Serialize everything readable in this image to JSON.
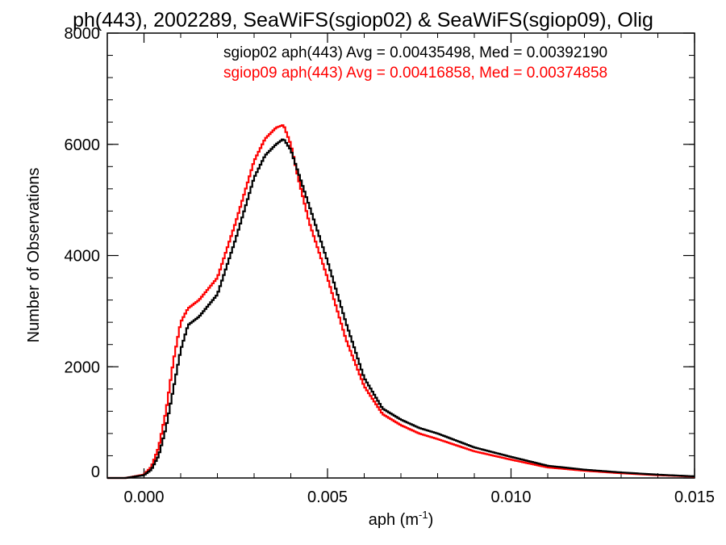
{
  "chart_data": {
    "type": "line",
    "title": "ph(443), 2002289, SeaWiFS(sgiop02) & SeaWiFS(sgiop09), Olig",
    "xlabel_main": "aph (m",
    "xlabel_exp": "-1",
    "xlabel_close": ")",
    "ylabel": "Number of Observations",
    "xlim": [
      -0.001,
      0.015
    ],
    "ylim": [
      0,
      8000
    ],
    "xticks": [
      0.0,
      0.005,
      0.01,
      0.015
    ],
    "xtick_labels": [
      "0.000",
      "0.005",
      "0.010",
      "0.015"
    ],
    "yticks": [
      0,
      2000,
      4000,
      6000,
      8000
    ],
    "ytick_labels": [
      "0",
      "2000",
      "4000",
      "6000",
      "8000"
    ],
    "grid": false,
    "legend_placement": "top-right",
    "series": [
      {
        "name": "sgiop02 aph(443) Avg = 0.00435498, Med = 0.00392190",
        "color": "#000000",
        "x": [
          -0.001,
          -0.0005,
          0.0,
          0.0002,
          0.0004,
          0.0006,
          0.0008,
          0.001,
          0.0012,
          0.0015,
          0.002,
          0.0025,
          0.003,
          0.0033,
          0.0036,
          0.0038,
          0.004,
          0.0042,
          0.0045,
          0.005,
          0.0055,
          0.006,
          0.0065,
          0.007,
          0.0075,
          0.008,
          0.009,
          0.01,
          0.011,
          0.012,
          0.013,
          0.014,
          0.015
        ],
        "y": [
          0,
          0,
          50,
          150,
          400,
          900,
          1600,
          2300,
          2750,
          2900,
          3300,
          4300,
          5400,
          5800,
          6000,
          6100,
          5900,
          5500,
          4900,
          3900,
          2800,
          1800,
          1250,
          1050,
          900,
          800,
          550,
          380,
          220,
          150,
          100,
          60,
          30
        ]
      },
      {
        "name": "sgiop09 aph(443) Avg = 0.00416858, Med = 0.00374858",
        "color": "#ff0000",
        "x": [
          -0.001,
          -0.0005,
          0.0,
          0.0002,
          0.0004,
          0.0006,
          0.0008,
          0.001,
          0.0012,
          0.0015,
          0.002,
          0.0025,
          0.003,
          0.0033,
          0.0036,
          0.0038,
          0.004,
          0.0042,
          0.0045,
          0.005,
          0.0055,
          0.006,
          0.0065,
          0.007,
          0.0075,
          0.008,
          0.009,
          0.01,
          0.011,
          0.012,
          0.013,
          0.014,
          0.015
        ],
        "y": [
          0,
          0,
          60,
          200,
          550,
          1200,
          2100,
          2800,
          3050,
          3200,
          3600,
          4600,
          5700,
          6100,
          6300,
          6350,
          6000,
          5400,
          4600,
          3600,
          2500,
          1650,
          1150,
          950,
          800,
          700,
          480,
          330,
          190,
          130,
          85,
          50,
          25
        ]
      }
    ]
  }
}
